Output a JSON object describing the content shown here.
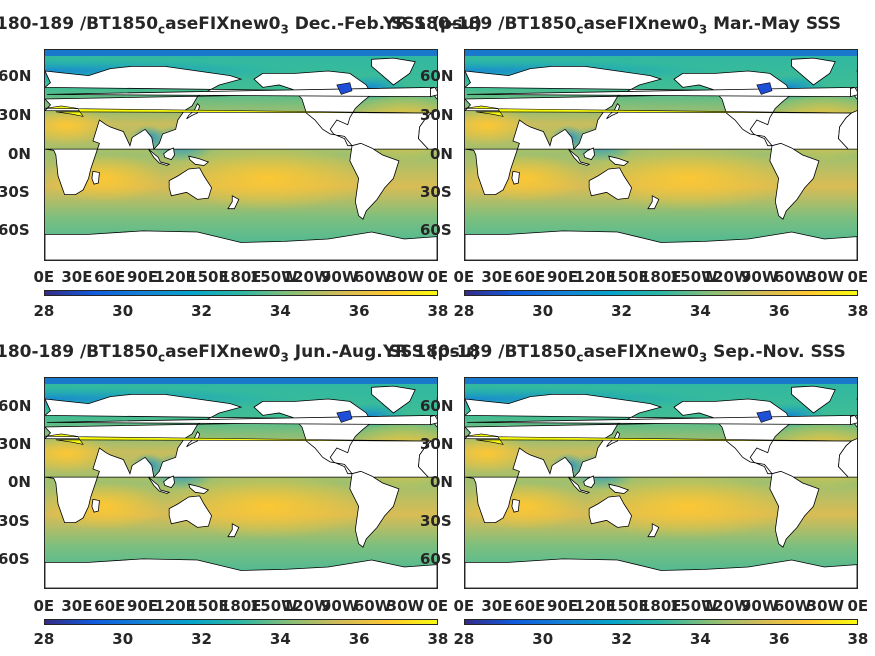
{
  "panels": [
    {
      "title_pre": "180-189 /BT1850",
      "title_sub1": "c",
      "title_mid": "aseFIXnew0",
      "title_sub2": "3",
      "title_post": " Dec.-Feb. SSS (psu)"
    },
    {
      "title_pre": "YR 180-189 /BT1850",
      "title_sub1": "c",
      "title_mid": "aseFIXnew0",
      "title_sub2": "3",
      "title_post": " Mar.-May SSS"
    },
    {
      "title_pre": "180-189 /BT1850",
      "title_sub1": "c",
      "title_mid": "aseFIXnew0",
      "title_sub2": "3",
      "title_post": " Jun.-Aug. SSS (psu)"
    },
    {
      "title_pre": "YR 180-189 /BT1850",
      "title_sub1": "c",
      "title_mid": "aseFIXnew0",
      "title_sub2": "3",
      "title_post": " Sep.-Nov. SSS"
    }
  ],
  "lat_labels": [
    "60N",
    "30N",
    "0N",
    "30S",
    "60S"
  ],
  "lon_labels": [
    "0E",
    "30E",
    "60E",
    "90E",
    "120E",
    "150E",
    "180E",
    "150W",
    "120W",
    "90W",
    "60W",
    "30W",
    "0E"
  ],
  "colorbar_ticks": [
    "28",
    "30",
    "32",
    "34",
    "36",
    "38"
  ],
  "colors": {
    "land": "#ffffff",
    "colormap": [
      "#352a87",
      "#0f5cdd",
      "#1481d6",
      "#06a4ca",
      "#2eb7a4",
      "#87bf77",
      "#d1bb59",
      "#fec832",
      "#f9fb0e"
    ]
  },
  "chart_data": [
    {
      "type": "heatmap",
      "variable": "SSS",
      "season": "Dec.-Feb.",
      "units": "psu",
      "clim": [
        28,
        38
      ],
      "xlim": [
        "0E",
        "0E"
      ],
      "ylim": [
        "90S",
        "90N"
      ]
    },
    {
      "type": "heatmap",
      "variable": "SSS",
      "season": "Mar.-May",
      "clim": [
        28,
        38
      ],
      "xlim": [
        "0E",
        "0E"
      ],
      "ylim": [
        "90S",
        "90N"
      ]
    },
    {
      "type": "heatmap",
      "variable": "SSS",
      "season": "Jun.-Aug.",
      "units": "psu",
      "clim": [
        28,
        38
      ],
      "xlim": [
        "0E",
        "0E"
      ],
      "ylim": [
        "90S",
        "90N"
      ]
    },
    {
      "type": "heatmap",
      "variable": "SSS",
      "season": "Sep.-Nov.",
      "clim": [
        28,
        38
      ],
      "xlim": [
        "0E",
        "0E"
      ],
      "ylim": [
        "90S",
        "90N"
      ]
    }
  ]
}
